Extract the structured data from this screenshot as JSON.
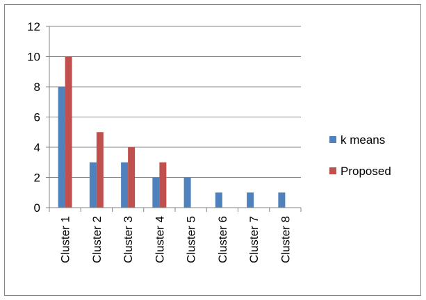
{
  "chart_data": {
    "type": "bar",
    "title": "",
    "xlabel": "",
    "ylabel": "",
    "categories": [
      "Cluster 1",
      "Cluster 2",
      "Cluster 3",
      "Cluster 4",
      "Cluster 5",
      "Cluster 6",
      "Cluster 7",
      "Cluster 8"
    ],
    "series": [
      {
        "name": "k means",
        "color": "#4f81bd",
        "values": [
          8,
          3,
          3,
          2,
          2,
          1,
          1,
          1
        ]
      },
      {
        "name": "Proposed",
        "color": "#c0504d",
        "values": [
          10,
          5,
          4,
          3,
          0,
          0,
          0,
          0
        ]
      }
    ],
    "ylim": [
      0,
      12
    ],
    "yticks": [
      0,
      2,
      4,
      6,
      8,
      10,
      12
    ],
    "grid": true,
    "legend": "right",
    "gridline_color": "#868686",
    "axis_color": "#868686"
  }
}
